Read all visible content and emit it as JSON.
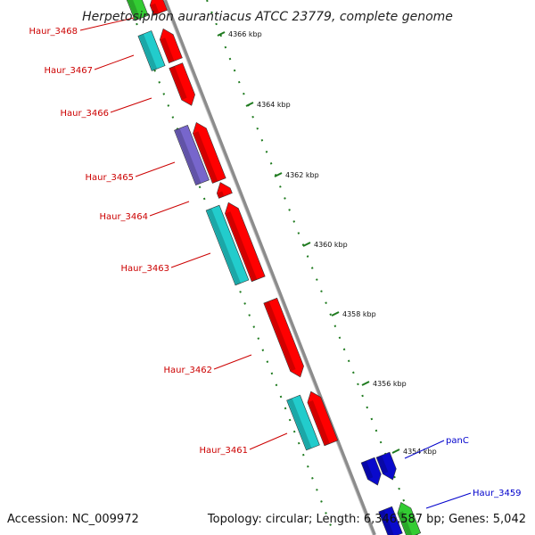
{
  "title": "Herpetosiphon aurantiacus ATCC 23779, complete genome",
  "footer": {
    "accession": "Accession: NC_009972",
    "summary": "Topology: circular; Length: 6,346,587 bp; Genes: 5,042"
  },
  "colors": {
    "backbone": "#8c8c8c",
    "tick": "#1e7a1e",
    "label_red": "#cc0000",
    "label_blue": "#0000cc",
    "feature_red": "#ff0000",
    "feature_cyan": "#22cccc",
    "feature_blue": "#0a0acc",
    "feature_green": "#33cc33",
    "feature_purple": "#7766cc"
  },
  "ticks": [
    {
      "label": "4366 kbp"
    },
    {
      "label": "4364 kbp"
    },
    {
      "label": "4362 kbp"
    },
    {
      "label": "4360 kbp"
    },
    {
      "label": "4358 kbp"
    },
    {
      "label": "4356 kbp"
    },
    {
      "label": "4354 kbp"
    }
  ],
  "genes": [
    {
      "label": "Haur_3468",
      "color": "label_red"
    },
    {
      "label": "Haur_3467",
      "color": "label_red"
    },
    {
      "label": "Haur_3466",
      "color": "label_red"
    },
    {
      "label": "Haur_3465",
      "color": "label_red"
    },
    {
      "label": "Haur_3464",
      "color": "label_red"
    },
    {
      "label": "Haur_3463",
      "color": "label_red"
    },
    {
      "label": "Haur_3462",
      "color": "label_red"
    },
    {
      "label": "Haur_3461",
      "color": "label_red"
    },
    {
      "label": "panC",
      "color": "label_blue"
    },
    {
      "label": "Haur_3459",
      "color": "label_blue"
    }
  ]
}
